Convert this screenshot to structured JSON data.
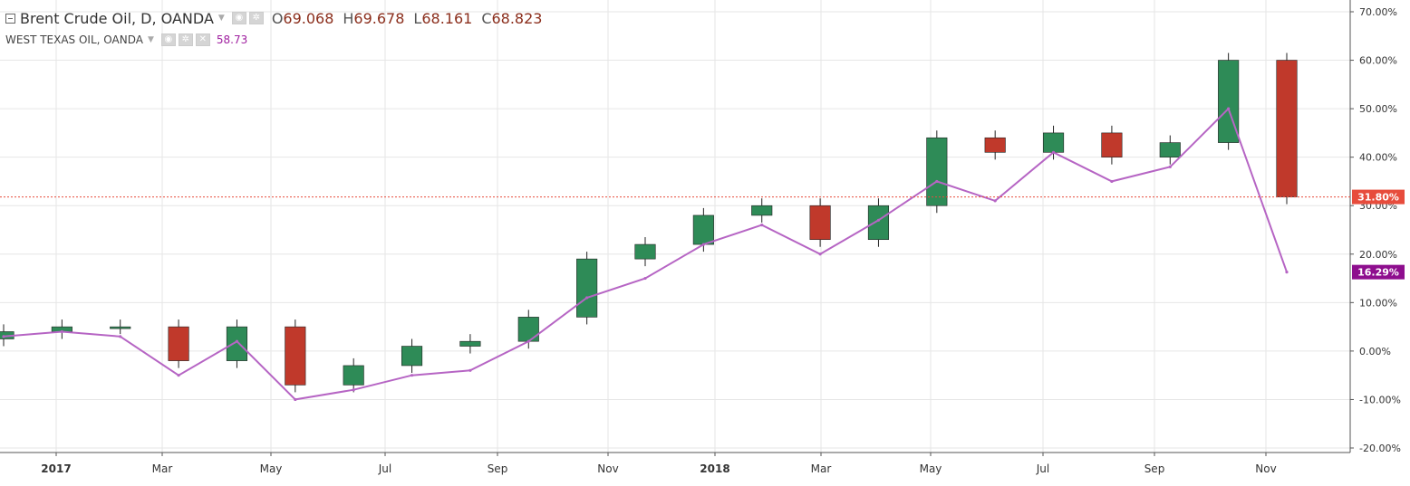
{
  "legend": {
    "main_title": "Brent Crude Oil, D, OANDA",
    "ohlc": {
      "o_label": "O",
      "o": "69.068",
      "h_label": "H",
      "h": "69.678",
      "l_label": "L",
      "l": "68.161",
      "c_label": "C",
      "c": "68.823"
    },
    "compare_title": "WEST TEXAS OIL, OANDA",
    "compare_value": "58.73"
  },
  "colors": {
    "up": "#2e8b57",
    "down": "#c0392b",
    "compare": "#b665c4",
    "price_line": "#e74c3c",
    "badge_brent": "#e74c3c",
    "badge_wti": "#8e0e8e",
    "grid": "#e6e6e6",
    "axis_text": "#333333"
  },
  "chart_data": {
    "type": "line",
    "x_axis_labels": [
      "2017",
      "Mar",
      "May",
      "Jul",
      "Sep",
      "Nov",
      "2018",
      "Mar",
      "May",
      "Jul",
      "Sep",
      "Nov"
    ],
    "x": [
      "2017-01",
      "2017-02",
      "2017-03",
      "2017-04",
      "2017-05",
      "2017-06",
      "2017-07",
      "2017-08",
      "2017-09",
      "2017-10",
      "2017-11",
      "2017-12",
      "2018-01",
      "2018-02",
      "2018-03",
      "2018-04",
      "2018-05",
      "2018-06",
      "2018-07",
      "2018-08",
      "2018-09",
      "2018-10",
      "2018-11"
    ],
    "y_axis": {
      "unit": "%",
      "ticks": [
        "70.00%",
        "60.00%",
        "50.00%",
        "40.00%",
        "30.00%",
        "20.00%",
        "10.00%",
        "0.00%",
        "-10.00%",
        "-20.00%"
      ],
      "ylim": [
        -20,
        70
      ]
    },
    "grid": true,
    "series": [
      {
        "name": "Brent Crude Oil, D, OANDA",
        "style": "candlestick",
        "values": [
          4,
          5,
          5,
          -2,
          5,
          -7,
          -3,
          1,
          2,
          7,
          19,
          22,
          28,
          30,
          23,
          30,
          44,
          41,
          45,
          40,
          43,
          60,
          31.8
        ]
      },
      {
        "name": "WEST TEXAS OIL, OANDA",
        "style": "line",
        "values": [
          3,
          4,
          3,
          -5,
          2,
          -10,
          -8,
          -5,
          -4,
          2,
          11,
          15,
          22,
          26,
          20,
          27,
          35,
          31,
          41,
          35,
          38,
          50,
          16.29
        ]
      }
    ],
    "last_value_badges": [
      "31.80%",
      "16.29%"
    ]
  }
}
